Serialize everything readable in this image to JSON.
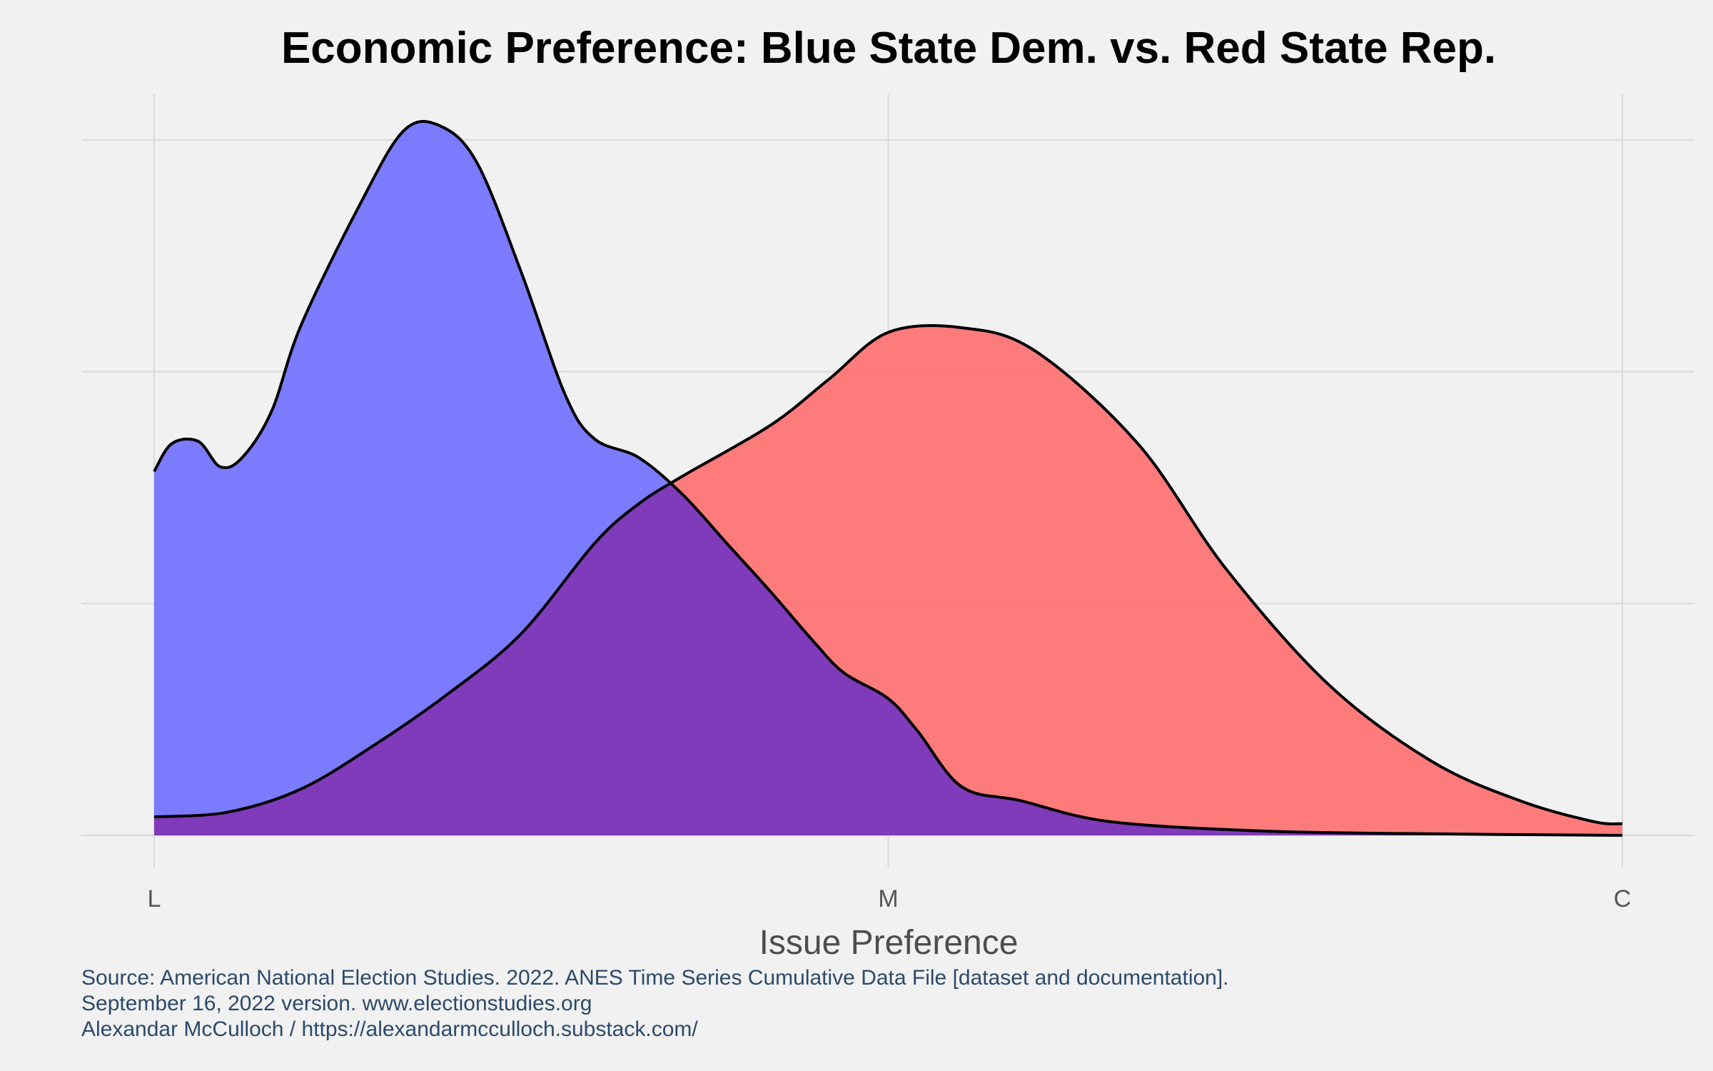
{
  "chart_data": {
    "type": "area",
    "title": "Economic Preference: Blue State Dem. vs. Red State Rep.",
    "xlabel": "Issue Preference",
    "ylabel": "",
    "xlim": [
      0,
      1
    ],
    "ylim": [
      0,
      3
    ],
    "x_ticks": [
      {
        "value": 0,
        "label": "L"
      },
      {
        "value": 0.5,
        "label": "M"
      },
      {
        "value": 1,
        "label": "C"
      }
    ],
    "y_gridlines": [
      0,
      1,
      2,
      3
    ],
    "grid": true,
    "legend": "none",
    "series": [
      {
        "name": "Blue State Dem.",
        "color": "#6666ff",
        "opacity": 0.85,
        "points": [
          [
            0.0,
            1.57
          ],
          [
            0.012,
            1.69
          ],
          [
            0.03,
            1.7
          ],
          [
            0.045,
            1.59
          ],
          [
            0.06,
            1.63
          ],
          [
            0.08,
            1.83
          ],
          [
            0.1,
            2.2
          ],
          [
            0.14,
            2.72
          ],
          [
            0.17,
            3.04
          ],
          [
            0.195,
            3.06
          ],
          [
            0.22,
            2.9
          ],
          [
            0.25,
            2.43
          ],
          [
            0.28,
            1.9
          ],
          [
            0.3,
            1.71
          ],
          [
            0.33,
            1.63
          ],
          [
            0.36,
            1.47
          ],
          [
            0.39,
            1.26
          ],
          [
            0.42,
            1.05
          ],
          [
            0.45,
            0.83
          ],
          [
            0.47,
            0.7
          ],
          [
            0.5,
            0.59
          ],
          [
            0.52,
            0.45
          ],
          [
            0.55,
            0.21
          ],
          [
            0.59,
            0.15
          ],
          [
            0.65,
            0.06
          ],
          [
            0.75,
            0.02
          ],
          [
            0.85,
            0.008
          ],
          [
            1.0,
            0.0
          ]
        ]
      },
      {
        "name": "Red State Rep.",
        "color": "#ff6666",
        "opacity": 0.85,
        "points": [
          [
            0.0,
            0.08
          ],
          [
            0.05,
            0.1
          ],
          [
            0.1,
            0.2
          ],
          [
            0.15,
            0.39
          ],
          [
            0.2,
            0.61
          ],
          [
            0.25,
            0.87
          ],
          [
            0.3,
            1.26
          ],
          [
            0.33,
            1.43
          ],
          [
            0.36,
            1.55
          ],
          [
            0.42,
            1.77
          ],
          [
            0.46,
            1.97
          ],
          [
            0.5,
            2.17
          ],
          [
            0.55,
            2.19
          ],
          [
            0.6,
            2.09
          ],
          [
            0.67,
            1.69
          ],
          [
            0.73,
            1.15
          ],
          [
            0.8,
            0.65
          ],
          [
            0.87,
            0.32
          ],
          [
            0.93,
            0.15
          ],
          [
            0.98,
            0.06
          ],
          [
            1.0,
            0.05
          ]
        ]
      }
    ],
    "overlap_color": "#7f3bba"
  },
  "caption": {
    "line1": "Source: American National Election Studies. 2022. ANES Time Series Cumulative Data File [dataset and documentation].",
    "line2": "September 16, 2022 version. www.electionstudies.org",
    "line3": "Alexandar McCulloch / https://alexandarmcculloch.substack.com/"
  }
}
